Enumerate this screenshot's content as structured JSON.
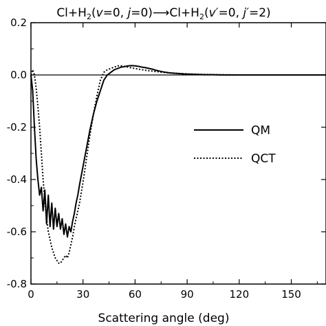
{
  "chart_data": {
    "type": "line",
    "title_parts": {
      "a": "Cl+H",
      "a_sub": "2",
      "b": "(",
      "b_v": "v",
      "c": "=0, ",
      "c_j": "j",
      "d": "=0)",
      "arrow": "⟶",
      "e": "Cl+H",
      "e_sub": "2",
      "f": "(",
      "f_v": "v′",
      "g": "=0, ",
      "g_j": "j′",
      "h": "=2)"
    },
    "xlabel": "Scattering angle (deg)",
    "ylabel": "",
    "xlim": [
      0,
      170
    ],
    "ylim": [
      -0.8,
      0.2
    ],
    "xticks": [
      0,
      30,
      60,
      90,
      120,
      150
    ],
    "xtick_labels": [
      "0",
      "30",
      "60",
      "90",
      "120",
      "150"
    ],
    "yticks": [
      0.2,
      0.0,
      -0.2,
      -0.4,
      -0.6,
      -0.8
    ],
    "ytick_labels": [
      "0.2",
      "0.0",
      "-0.2",
      "-0.4",
      "-0.6",
      "-0.8"
    ],
    "zero_line": true,
    "grid": false,
    "legend": {
      "position": "right",
      "entries": [
        {
          "label": "QM",
          "style": "solid"
        },
        {
          "label": "QCT",
          "style": "dotted"
        }
      ]
    },
    "series": [
      {
        "name": "QM",
        "style": "solid",
        "x": [
          0,
          1,
          2,
          3,
          4,
          5,
          6,
          7,
          8,
          9,
          10,
          11,
          12,
          13,
          14,
          15,
          16,
          17,
          18,
          19,
          20,
          21,
          22,
          23,
          24,
          25,
          26,
          27,
          28,
          30,
          32,
          34,
          36,
          38,
          40,
          42,
          44,
          46,
          48,
          50,
          52,
          54,
          56,
          58,
          60,
          62,
          64,
          66,
          68,
          70,
          72,
          74,
          76,
          78,
          80,
          84,
          88,
          92,
          96,
          100,
          105,
          110,
          115,
          120,
          130,
          140,
          150,
          160,
          170
        ],
        "y": [
          0.0,
          -0.06,
          -0.2,
          -0.32,
          -0.4,
          -0.46,
          -0.43,
          -0.52,
          -0.44,
          -0.57,
          -0.46,
          -0.58,
          -0.49,
          -0.59,
          -0.51,
          -0.58,
          -0.53,
          -0.59,
          -0.55,
          -0.61,
          -0.57,
          -0.62,
          -0.58,
          -0.6,
          -0.56,
          -0.53,
          -0.49,
          -0.46,
          -0.42,
          -0.35,
          -0.28,
          -0.21,
          -0.15,
          -0.1,
          -0.06,
          -0.02,
          0.0,
          0.01,
          0.02,
          0.025,
          0.03,
          0.032,
          0.035,
          0.036,
          0.035,
          0.033,
          0.03,
          0.028,
          0.025,
          0.022,
          0.018,
          0.015,
          0.012,
          0.01,
          0.008,
          0.006,
          0.004,
          0.003,
          0.002,
          0.001,
          0.001,
          0.0,
          0.0,
          0.0,
          0.0,
          0.0,
          0.0,
          0.0,
          0.0
        ]
      },
      {
        "name": "QCT",
        "style": "dotted",
        "x": [
          0,
          1,
          2,
          3,
          4,
          5,
          6,
          7,
          8,
          9,
          10,
          11,
          12,
          13,
          14,
          15,
          16,
          17,
          18,
          19,
          20,
          21,
          22,
          23,
          24,
          25,
          26,
          27,
          28,
          30,
          32,
          34,
          36,
          38,
          40,
          42,
          44,
          46,
          48,
          50,
          52,
          54,
          56,
          58,
          60,
          64,
          68,
          72,
          76,
          80,
          85,
          90,
          95,
          100,
          110,
          120,
          130,
          140,
          150,
          160,
          170
        ],
        "y": [
          0.0,
          0.02,
          0.0,
          -0.05,
          -0.12,
          -0.2,
          -0.3,
          -0.4,
          -0.48,
          -0.55,
          -0.6,
          -0.63,
          -0.66,
          -0.68,
          -0.7,
          -0.71,
          -0.72,
          -0.72,
          -0.71,
          -0.7,
          -0.69,
          -0.7,
          -0.68,
          -0.65,
          -0.62,
          -0.58,
          -0.55,
          -0.52,
          -0.49,
          -0.41,
          -0.32,
          -0.23,
          -0.15,
          -0.08,
          -0.02,
          0.01,
          0.02,
          0.025,
          0.03,
          0.035,
          0.035,
          0.033,
          0.03,
          0.027,
          0.025,
          0.02,
          0.016,
          0.013,
          0.01,
          0.008,
          0.006,
          0.004,
          0.003,
          0.002,
          0.001,
          0.0,
          0.0,
          0.0,
          0.0,
          0.0,
          0.0
        ]
      }
    ]
  }
}
